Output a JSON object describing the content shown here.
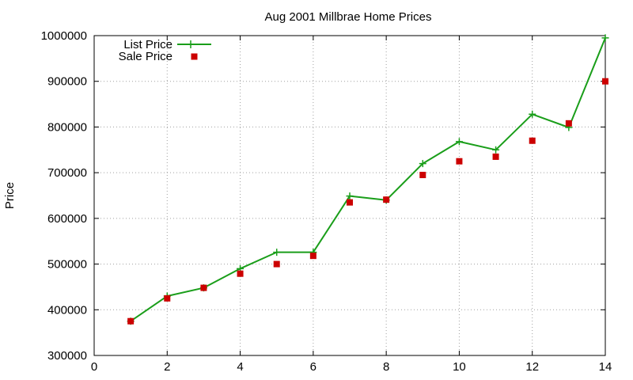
{
  "chart_data": {
    "type": "line",
    "title": "Aug 2001 Millbrae Home Prices",
    "xlabel": "",
    "ylabel": "Price",
    "xlim": [
      0,
      14
    ],
    "ylim": [
      300000,
      1000000
    ],
    "x_ticks": [
      "0",
      "2",
      "4",
      "6",
      "8",
      "10",
      "12",
      "14"
    ],
    "y_ticks": [
      "300000",
      "400000",
      "500000",
      "600000",
      "700000",
      "800000",
      "900000",
      "1000000"
    ],
    "grid": true,
    "legend_position": "top-left",
    "series": [
      {
        "name": "List Price",
        "style": "line+cross",
        "color": "#1a9e1a",
        "x": [
          1,
          2,
          3,
          4,
          5,
          6,
          7,
          8,
          9,
          10,
          11,
          12,
          13,
          14
        ],
        "values": [
          375000,
          430000,
          448000,
          490000,
          526000,
          526000,
          649000,
          640000,
          720000,
          768000,
          750000,
          828000,
          799000,
          995000
        ]
      },
      {
        "name": "Sale Price",
        "style": "square",
        "color": "#cc0000",
        "x": [
          1,
          2,
          3,
          4,
          5,
          6,
          7,
          8,
          9,
          10,
          11,
          12,
          13,
          14
        ],
        "values": [
          375000,
          425000,
          448000,
          479000,
          500000,
          518000,
          635000,
          641000,
          695000,
          725000,
          735000,
          770000,
          808000,
          900000
        ]
      }
    ]
  }
}
